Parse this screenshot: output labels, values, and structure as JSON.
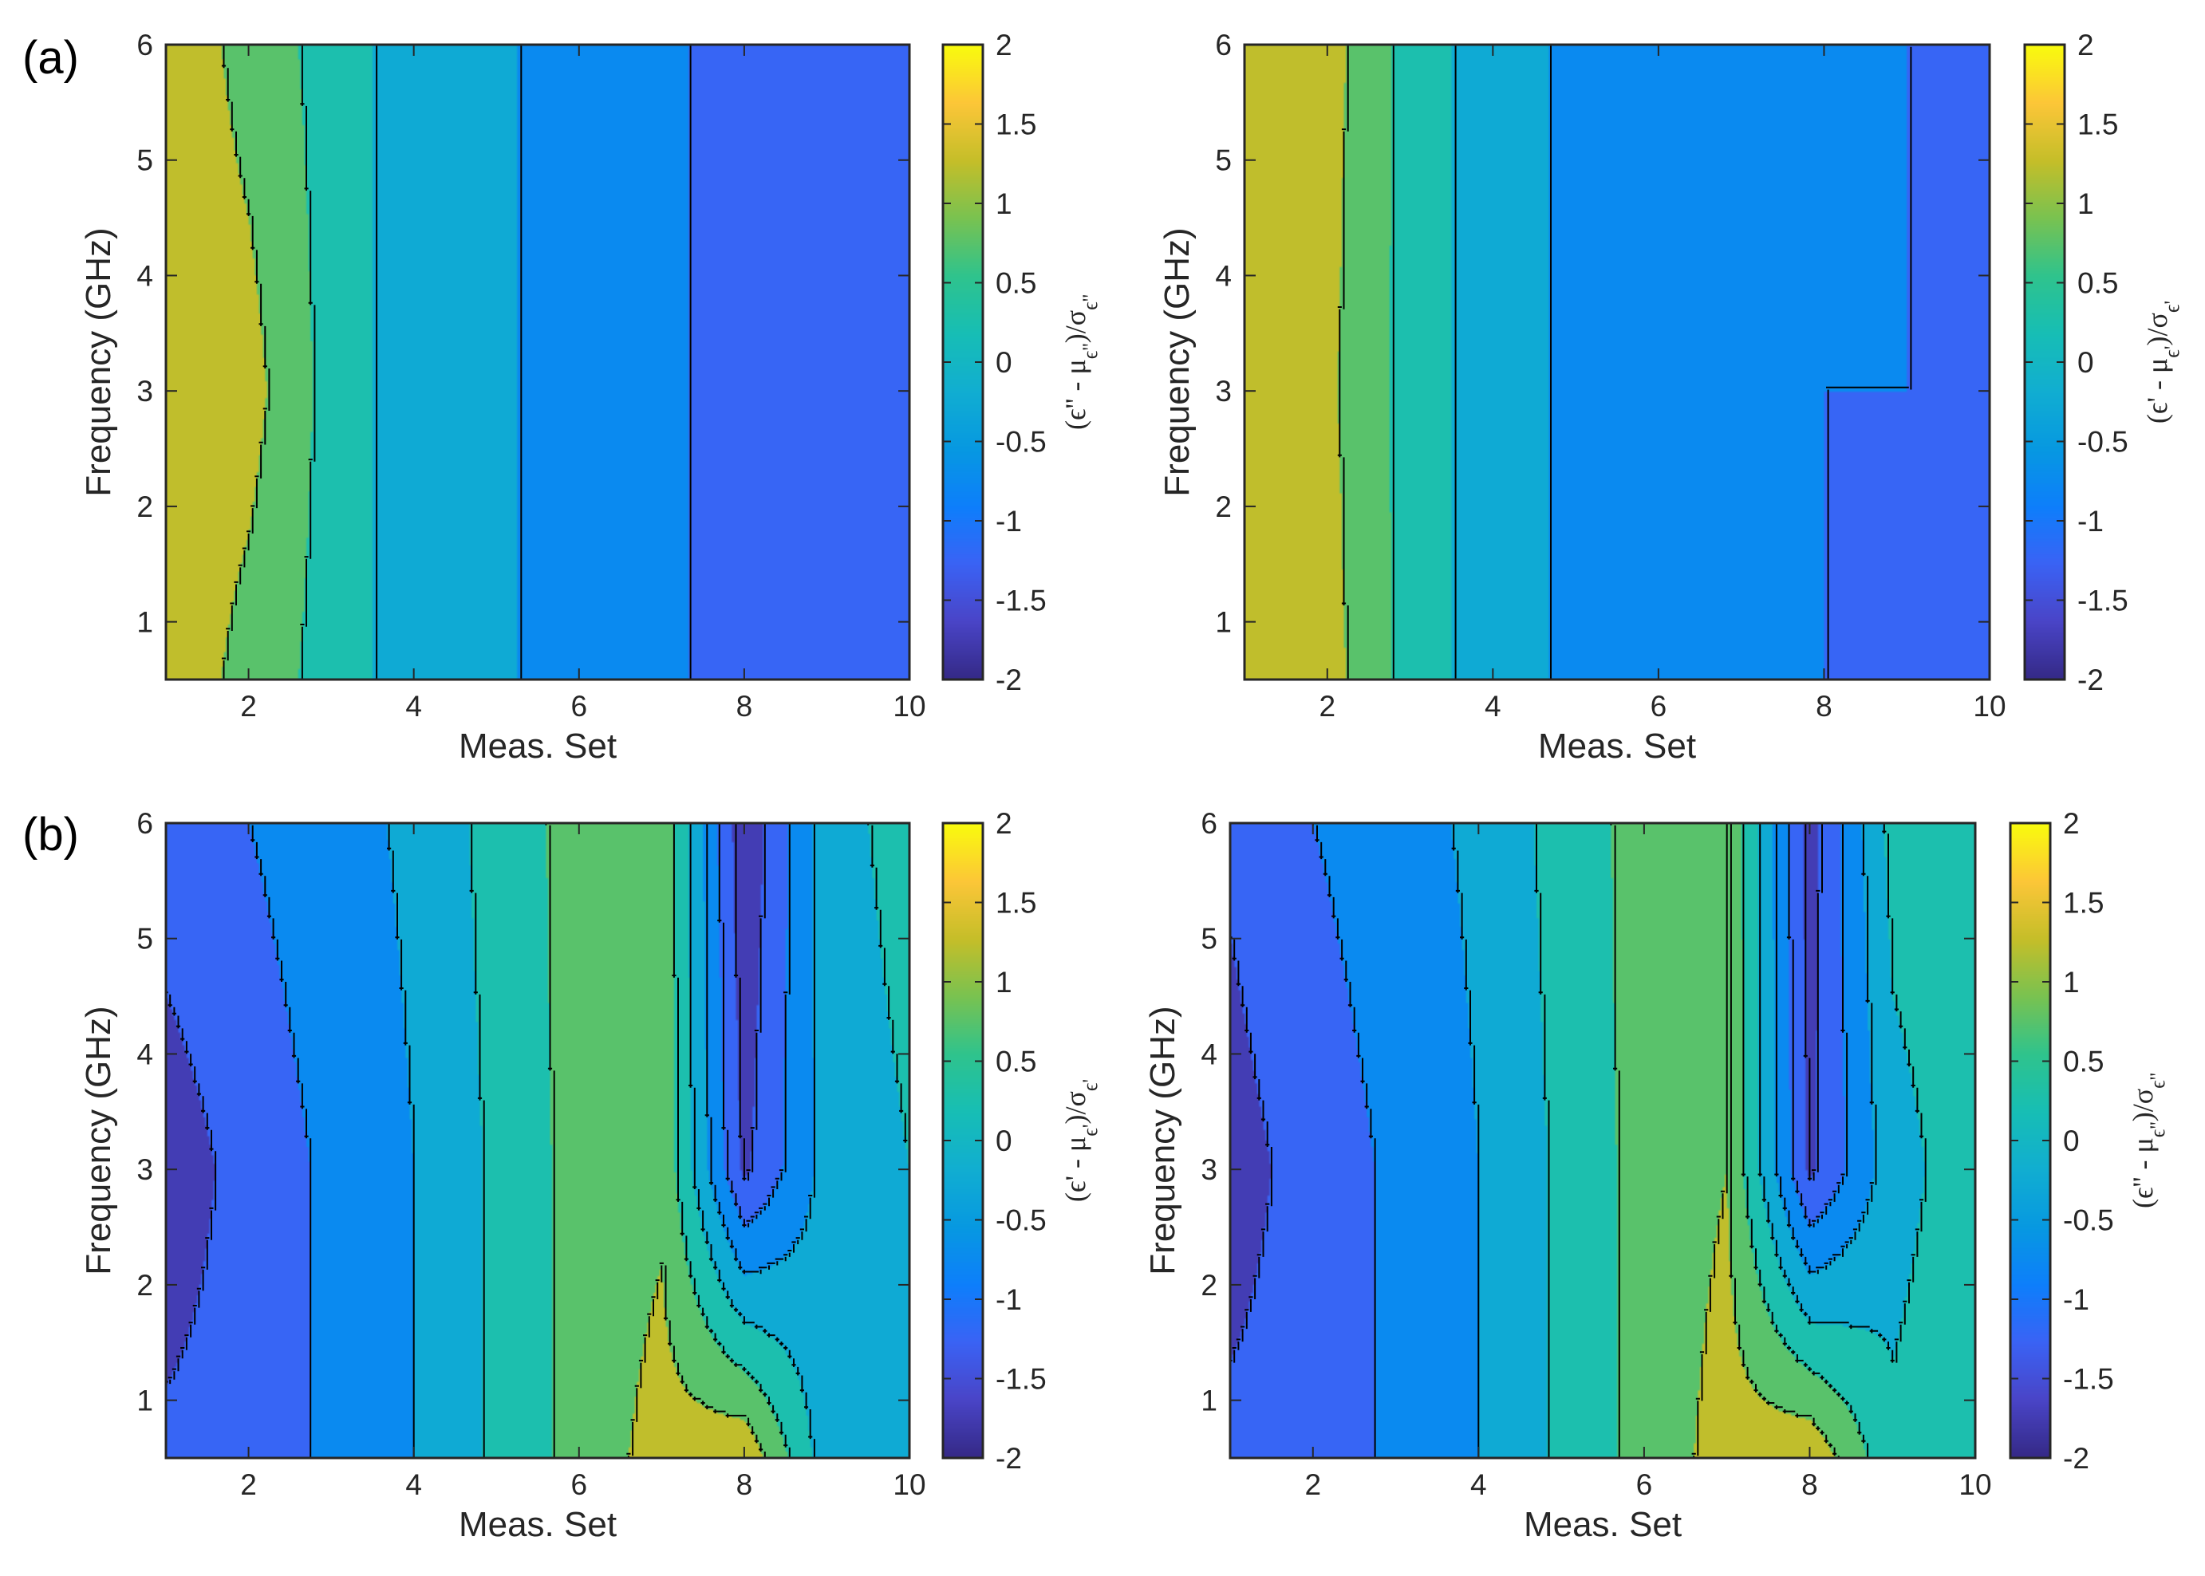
{
  "figure": {
    "panel_tags": [
      "(a)",
      "(b)"
    ]
  },
  "colors": {
    "axis": "#262626",
    "contour_line": "#000000",
    "parula": [
      "#352a87",
      "#4a45c8",
      "#3a63f5",
      "#0d7ffb",
      "#0799e1",
      "#11aed1",
      "#17beb5",
      "#2fc38d",
      "#79c251",
      "#c5be29",
      "#fcc638",
      "#f9fb0e"
    ]
  },
  "chart_data": [
    {
      "type": "heatmap",
      "panel": "(a)",
      "position": "top-left",
      "xlabel": "Meas. Set",
      "ylabel": "Frequency (GHz)",
      "colorbar_label": "(ϵ'' - μϵ'')/σϵ''",
      "x_range": [
        1,
        10
      ],
      "y_range": [
        0.5,
        6
      ],
      "x_ticks": [
        2,
        4,
        6,
        8,
        10
      ],
      "y_ticks": [
        1,
        2,
        3,
        4,
        5,
        6
      ],
      "clim": [
        -2,
        2
      ],
      "colorbar_ticks": [
        -2,
        -1.5,
        -1,
        -0.5,
        0,
        0.5,
        1,
        1.5,
        2
      ],
      "x": [
        1,
        2,
        3,
        4,
        5,
        6,
        7,
        8,
        9,
        10
      ],
      "y": [
        0.5,
        3,
        6
      ],
      "z": [
        [
          1.4,
          0.8,
          0.3,
          -0.3,
          -0.4,
          -0.8,
          -0.9,
          -1.2,
          -1.3,
          -1.3
        ],
        [
          1.4,
          1.2,
          0.3,
          -0.3,
          -0.4,
          -0.8,
          -0.9,
          -1.2,
          -1.3,
          -1.3
        ],
        [
          1.4,
          0.8,
          0.3,
          -0.3,
          -0.4,
          -0.8,
          -0.9,
          -1.2,
          -1.3,
          -1.1
        ]
      ]
    },
    {
      "type": "heatmap",
      "panel": "(a)",
      "position": "top-right",
      "xlabel": "Meas. Set",
      "ylabel": "Frequency (GHz)",
      "colorbar_label": "(ϵ' - μϵ')/σϵ'",
      "x_range": [
        1,
        10
      ],
      "y_range": [
        0.5,
        6
      ],
      "x_ticks": [
        2,
        4,
        6,
        8,
        10
      ],
      "y_ticks": [
        1,
        2,
        3,
        4,
        5,
        6
      ],
      "clim": [
        -2,
        2
      ],
      "colorbar_ticks": [
        -2,
        -1.5,
        -1,
        -0.5,
        0,
        0.5,
        1,
        1.5,
        2
      ],
      "x": [
        1,
        2,
        3,
        4,
        5,
        6,
        7,
        8,
        9,
        10
      ],
      "y": [
        0.5,
        3,
        6
      ],
      "z": [
        [
          1.4,
          1.2,
          0.3,
          -0.3,
          -0.6,
          -0.8,
          -1.0,
          -1.0,
          -1.1,
          -1.1
        ],
        [
          1.4,
          1.1,
          0.3,
          -0.3,
          -0.6,
          -0.8,
          -1.0,
          -1.0,
          -1.0,
          -1.1
        ],
        [
          1.4,
          1.2,
          0.3,
          -0.3,
          -0.6,
          -0.8,
          -1.0,
          -1.0,
          -1.0,
          -1.0
        ]
      ]
    },
    {
      "type": "heatmap",
      "panel": "(b)",
      "position": "bottom-left",
      "xlabel": "Meas. Set",
      "ylabel": "Frequency (GHz)",
      "colorbar_label": "(ϵ' - μϵ')/σϵ'",
      "x_range": [
        1,
        10
      ],
      "y_range": [
        0.5,
        6
      ],
      "x_ticks": [
        2,
        4,
        6,
        8,
        10
      ],
      "y_ticks": [
        1,
        2,
        3,
        4,
        5,
        6
      ],
      "clim": [
        -2,
        2
      ],
      "colorbar_ticks": [
        -2,
        -1.5,
        -1,
        -0.5,
        0,
        0.5,
        1,
        1.5,
        2
      ],
      "x": [
        1,
        2,
        3,
        4,
        5,
        6,
        7,
        8,
        9,
        10
      ],
      "y": [
        0.5,
        3,
        6
      ],
      "z": [
        [
          -1.4,
          -1.3,
          -0.9,
          -0.5,
          0.1,
          0.7,
          1.2,
          1.4,
          -0.3,
          0.0
        ],
        [
          -1.8,
          -1.3,
          -0.9,
          -0.5,
          0.1,
          0.7,
          0.9,
          -1.6,
          -0.3,
          0.0
        ],
        [
          -1.2,
          -1.0,
          -0.7,
          -0.4,
          0.2,
          0.7,
          0.9,
          -1.9,
          -0.2,
          0.2
        ]
      ]
    },
    {
      "type": "heatmap",
      "panel": "(b)",
      "position": "bottom-right",
      "xlabel": "Meas. Set",
      "ylabel": "Frequency (GHz)",
      "colorbar_label": "(ϵ'' - μϵ'')/σϵ''",
      "x_range": [
        1,
        10
      ],
      "y_range": [
        0.5,
        6
      ],
      "x_ticks": [
        2,
        4,
        6,
        8,
        10
      ],
      "y_ticks": [
        1,
        2,
        3,
        4,
        5,
        6
      ],
      "clim": [
        -2,
        2
      ],
      "colorbar_ticks": [
        -2,
        -1.5,
        -1,
        -0.5,
        0,
        0.5,
        1,
        1.5,
        2
      ],
      "x": [
        1,
        2,
        3,
        4,
        5,
        6,
        7,
        8,
        9,
        10
      ],
      "y": [
        0.5,
        3,
        6
      ],
      "z": [
        [
          -1.4,
          -1.3,
          -0.9,
          -0.5,
          0.1,
          0.7,
          1.2,
          1.4,
          0.1,
          0.4
        ],
        [
          -1.7,
          -1.3,
          -0.9,
          -0.5,
          0.1,
          0.7,
          1.0,
          -1.6,
          -0.2,
          0.3
        ],
        [
          -1.4,
          -1.0,
          -0.7,
          -0.4,
          0.2,
          0.7,
          1.0,
          -1.7,
          0.2,
          0.4
        ]
      ]
    }
  ]
}
